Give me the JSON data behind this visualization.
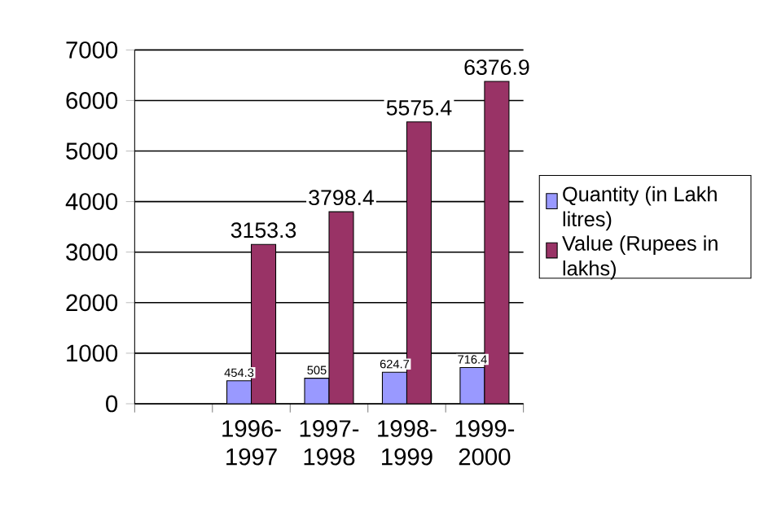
{
  "chart_data": {
    "type": "bar",
    "categories": [
      null,
      "1996-1997",
      "1997-1998",
      "1998-1999",
      "1999-2000"
    ],
    "series": [
      {
        "name": "Quantity (in Lakh litres)",
        "color": "#9999ff",
        "values": [
          null,
          454.3,
          505,
          624.7,
          716.4
        ]
      },
      {
        "name": "Value (Rupees in lakhs)",
        "color": "#993366",
        "values": [
          null,
          3153.3,
          3798.4,
          5575.4,
          6376.9
        ]
      }
    ],
    "ylim": [
      0,
      7000
    ],
    "yticks": [
      0,
      1000,
      2000,
      3000,
      4000,
      5000,
      6000,
      7000
    ],
    "grid": "y",
    "legend": "right",
    "data_labels": true
  }
}
